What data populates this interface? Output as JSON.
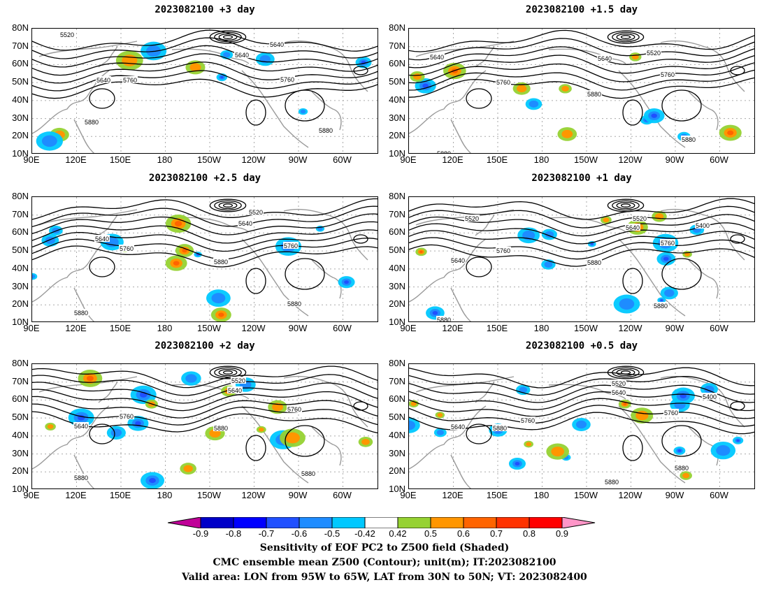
{
  "panels": [
    {
      "title": "2023082100  +3 day"
    },
    {
      "title": "2023082100  +1.5 day"
    },
    {
      "title": "2023082100  +2.5 day"
    },
    {
      "title": "2023082100  +1 day"
    },
    {
      "title": "2023082100  +2 day"
    },
    {
      "title": "2023082100  +0.5 day"
    }
  ],
  "axes": {
    "lat_labels": [
      "80N",
      "70N",
      "60N",
      "50N",
      "40N",
      "30N",
      "20N",
      "10N"
    ],
    "lon_labels": [
      "90E",
      "120E",
      "150E",
      "180",
      "150W",
      "120W",
      "90W",
      "60W"
    ]
  },
  "contour_labels": [
    "5400",
    "5520",
    "5640",
    "5760",
    "5880"
  ],
  "colorbar": {
    "labels": [
      "-0.9",
      "-0.8",
      "-0.7",
      "-0.6",
      "-0.5",
      "-0.42",
      "0.42",
      "0.5",
      "0.6",
      "0.7",
      "0.8",
      "0.9"
    ],
    "colors": [
      "#c00098",
      "#0000c8",
      "#0000ff",
      "#2050ff",
      "#1e8cff",
      "#00c8ff",
      "#ffffff",
      "#96d232",
      "#ff9600",
      "#ff6400",
      "#ff3200",
      "#ff0000",
      "#ff96c8"
    ]
  },
  "caption": {
    "line1": "Sensitivity of EOF PC2 to Z500 field (Shaded)",
    "line2": "CMC ensemble mean Z500 (Contour); unit(m); IT:2023082100",
    "line3": "Valid area: LON from 95W to 65W, LAT from 30N to 50N; VT: 2023082400"
  }
}
